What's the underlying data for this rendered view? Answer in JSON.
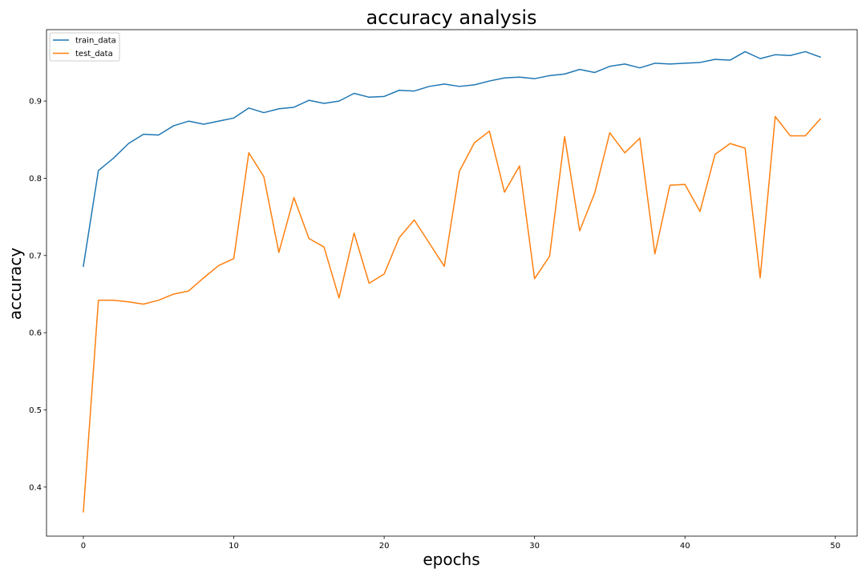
{
  "chart_data": {
    "type": "line",
    "title": "accuracy analysis",
    "xlabel": "epochs",
    "ylabel": "accuracy",
    "xlim": [
      -2.45,
      51.45
    ],
    "ylim": [
      0.3365,
      0.9925
    ],
    "xticks": [
      0,
      10,
      20,
      30,
      40,
      50
    ],
    "yticks": [
      0.4,
      0.5,
      0.6,
      0.7,
      0.8,
      0.9
    ],
    "grid": false,
    "legend_position": "top-left",
    "x": [
      0,
      1,
      2,
      3,
      4,
      5,
      6,
      7,
      8,
      9,
      10,
      11,
      12,
      13,
      14,
      15,
      16,
      17,
      18,
      19,
      20,
      21,
      22,
      23,
      24,
      25,
      26,
      27,
      28,
      29,
      30,
      31,
      32,
      33,
      34,
      35,
      36,
      37,
      38,
      39,
      40,
      41,
      42,
      43,
      44,
      45,
      46,
      47,
      48,
      49
    ],
    "series": [
      {
        "name": "train_data",
        "color": "#1f77b4",
        "values": [
          0.686,
          0.81,
          0.826,
          0.845,
          0.857,
          0.856,
          0.868,
          0.874,
          0.87,
          0.874,
          0.878,
          0.891,
          0.885,
          0.89,
          0.892,
          0.901,
          0.897,
          0.9,
          0.91,
          0.905,
          0.906,
          0.914,
          0.913,
          0.919,
          0.922,
          0.919,
          0.921,
          0.926,
          0.93,
          0.931,
          0.929,
          0.933,
          0.935,
          0.941,
          0.937,
          0.945,
          0.948,
          0.943,
          0.949,
          0.948,
          0.949,
          0.95,
          0.954,
          0.953,
          0.964,
          0.955,
          0.96,
          0.959,
          0.964,
          0.957
        ]
      },
      {
        "name": "test_data",
        "color": "#ff7f0e",
        "values": [
          0.368,
          0.642,
          0.642,
          0.64,
          0.637,
          0.642,
          0.65,
          0.654,
          0.671,
          0.687,
          0.696,
          0.833,
          0.802,
          0.704,
          0.775,
          0.722,
          0.711,
          0.645,
          0.729,
          0.664,
          0.676,
          0.723,
          0.746,
          0.716,
          0.686,
          0.809,
          0.846,
          0.861,
          0.782,
          0.816,
          0.67,
          0.699,
          0.854,
          0.732,
          0.781,
          0.859,
          0.833,
          0.852,
          0.702,
          0.791,
          0.792,
          0.757,
          0.831,
          0.845,
          0.839,
          0.671,
          0.88,
          0.855,
          0.855,
          0.877
        ]
      }
    ]
  }
}
